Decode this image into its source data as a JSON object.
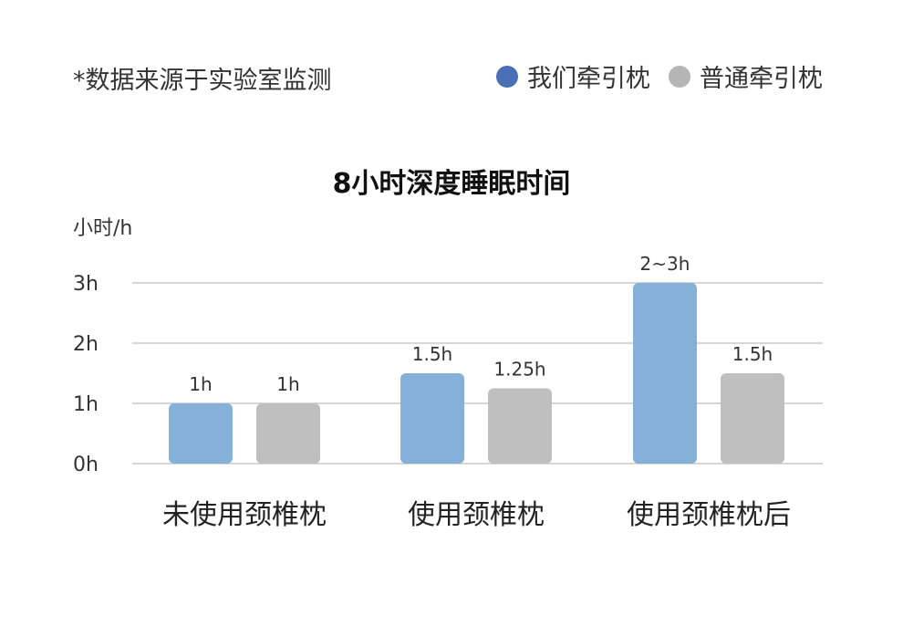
{
  "note": "*数据来源于实验室监测",
  "legend": [
    {
      "label": "我们牵引枕",
      "color": "#4a6fb5"
    },
    {
      "label": "普通牵引枕",
      "color": "#b5b5b5"
    }
  ],
  "colors": {
    "series1_bar": "#85b0d8",
    "series2_bar": "#bfbfbf",
    "grid": "#c8c8c8"
  },
  "chart_data": {
    "type": "bar",
    "title": "8小时深度睡眠时间",
    "ylabel": "小时/h",
    "ylim": [
      0,
      3
    ],
    "yticks": [
      {
        "value": 0,
        "label": "0h"
      },
      {
        "value": 1,
        "label": "1h"
      },
      {
        "value": 2,
        "label": "2h"
      },
      {
        "value": 3,
        "label": "3h"
      }
    ],
    "grid": true,
    "legend_position": "top-right",
    "categories": [
      "未使用颈椎枕",
      "使用颈椎枕",
      "使用颈椎枕后"
    ],
    "series": [
      {
        "name": "我们牵引枕",
        "values": [
          1,
          1.5,
          3
        ],
        "data_labels": [
          "1h",
          "1.5h",
          "2~3h"
        ]
      },
      {
        "name": "普通牵引枕",
        "values": [
          1,
          1.25,
          1.5
        ],
        "data_labels": [
          "1h",
          "1.25h",
          "1.5h"
        ]
      }
    ]
  }
}
